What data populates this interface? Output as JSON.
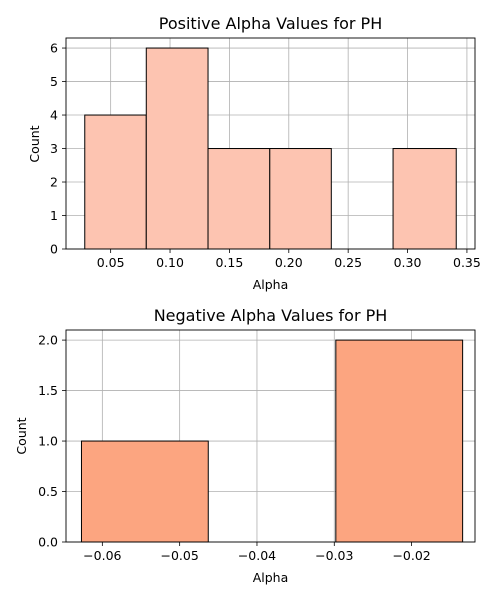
{
  "chart_data": [
    {
      "type": "bar",
      "title": "Positive Alpha Values for PH",
      "xlabel": "Alpha",
      "ylabel": "Count",
      "xlim": [
        0.0124,
        0.3568
      ],
      "ylim": [
        0,
        6.3
      ],
      "xticks": [
        "0.05",
        "0.10",
        "0.15",
        "0.20",
        "0.25",
        "0.30",
        "0.35"
      ],
      "xtick_values": [
        0.05,
        0.1,
        0.15,
        0.2,
        0.25,
        0.3,
        0.35
      ],
      "yticks": [
        "0",
        "1",
        "2",
        "3",
        "4",
        "5",
        "6"
      ],
      "ytick_values": [
        0,
        1,
        2,
        3,
        4,
        5,
        6
      ],
      "bin_edges": [
        0.0282,
        0.08,
        0.132,
        0.184,
        0.2358,
        0.2878,
        0.341
      ],
      "values": [
        4,
        6,
        3,
        3,
        0,
        3
      ],
      "grid": true,
      "bar_color": "#fdc4b1"
    },
    {
      "type": "bar",
      "title": "Negative Alpha Values for PH",
      "xlabel": "Alpha",
      "ylabel": "Count",
      "xlim": [
        -0.0647,
        -0.0118
      ],
      "ylim": [
        0,
        2.1
      ],
      "xticks": [
        "−0.06",
        "−0.05",
        "−0.04",
        "−0.03",
        "−0.02"
      ],
      "xtick_values": [
        -0.06,
        -0.05,
        -0.04,
        -0.03,
        -0.02
      ],
      "yticks": [
        "0.0",
        "0.5",
        "1.0",
        "1.5",
        "2.0"
      ],
      "ytick_values": [
        0.0,
        0.5,
        1.0,
        1.5,
        2.0
      ],
      "bin_edges": [
        -0.0627,
        -0.0463,
        -0.0298,
        -0.0134
      ],
      "values": [
        1,
        0,
        2
      ],
      "grid": true,
      "bar_color": "#fca580"
    }
  ]
}
